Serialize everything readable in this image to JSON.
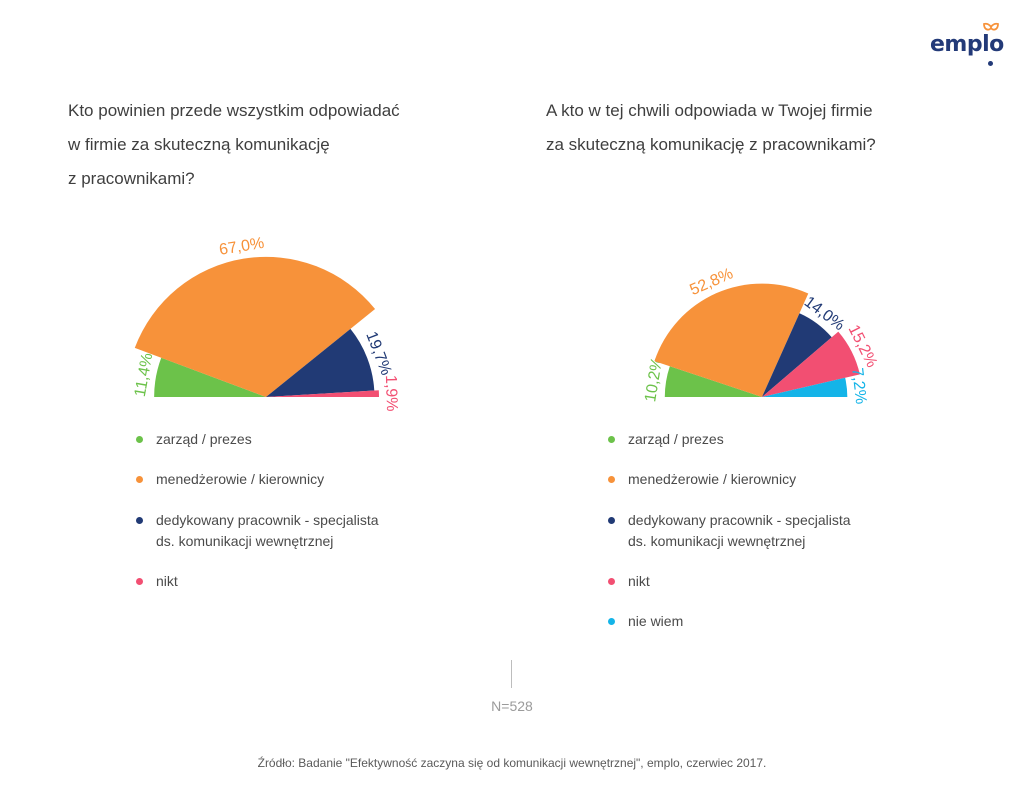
{
  "brand": {
    "logo_text": "emplo"
  },
  "titles": {
    "left": [
      "Kto powinien przede wszystkim odpowiadać",
      "w firmie za skuteczną komunikację",
      "z pracownikami?"
    ],
    "right": [
      "A kto w tej chwili odpowiada w Twojej firmie",
      "za skuteczną komunikację z pracownikami?"
    ]
  },
  "colors": {
    "zarzad": "#6cc24a",
    "menedzerowie": "#f7923a",
    "dedykowany": "#213a75",
    "nikt": "#f24f72",
    "nie_wiem": "#14b4e8"
  },
  "legend_left": [
    {
      "label": "zarząd / prezes",
      "color": "#6cc24a"
    },
    {
      "label": "menedżerowie / kierownicy",
      "color": "#f7923a"
    },
    {
      "label": "dedykowany pracownik - specjalista",
      "label2": "ds. komunikacji wewnętrznej",
      "color": "#213a75"
    },
    {
      "label": "nikt",
      "color": "#f24f72"
    }
  ],
  "legend_right": [
    {
      "label": "zarząd / prezes",
      "color": "#6cc24a"
    },
    {
      "label": "menedżerowie / kierownicy",
      "color": "#f7923a"
    },
    {
      "label": "dedykowany pracownik - specjalista",
      "label2": "ds. komunikacji wewnętrznej",
      "color": "#213a75"
    },
    {
      "label": "nikt",
      "color": "#f24f72"
    },
    {
      "label": "nie wiem",
      "color": "#14b4e8"
    }
  ],
  "chart_data": [
    {
      "type": "pie",
      "layout": "half-pie",
      "title": "Kto powinien przede wszystkim odpowiadać w firmie za skuteczną komunikację z pracownikami?",
      "categories": [
        "zarząd / prezes",
        "menedżerowie / kierownicy",
        "dedykowany pracownik - specjalista ds. komunikacji wewnętrznej",
        "nikt"
      ],
      "values": [
        11.4,
        67.0,
        19.7,
        1.9
      ],
      "value_labels": [
        "11,4%",
        "67,0%",
        "19,7%",
        "1,9%"
      ],
      "colors": [
        "#6cc24a",
        "#f7923a",
        "#213a75",
        "#f24f72"
      ],
      "scale_rule": "Slice radii differ by category",
      "radii_relative": [
        0.99,
        1.24,
        0.96,
        1.0
      ]
    },
    {
      "type": "pie",
      "layout": "half-pie",
      "title": "A kto w tej chwili odpowiada w Twojej firmie za skuteczną komunikację z pracownikami?",
      "categories": [
        "zarząd / prezes",
        "menedżerowie / kierownicy",
        "dedykowany pracownik - specjalista ds. komunikacji wewnętrznej",
        "nikt",
        "nie wiem"
      ],
      "values": [
        10.2,
        52.8,
        14.0,
        15.2,
        7.2
      ],
      "value_labels": [
        "10,2%",
        "52,8%",
        "14,0%",
        "15,2%",
        "7,2%"
      ],
      "colors": [
        "#6cc24a",
        "#f7923a",
        "#213a75",
        "#f24f72",
        "#14b4e8"
      ],
      "radii_relative": [
        0.9,
        1.05,
        0.85,
        0.93,
        0.79
      ]
    }
  ],
  "footer": {
    "n_label": "N=528",
    "source": "Źródło: Badanie \"Efektywność zaczyna się od komunikacji wewnętrznej\", emplo, czerwiec 2017."
  }
}
